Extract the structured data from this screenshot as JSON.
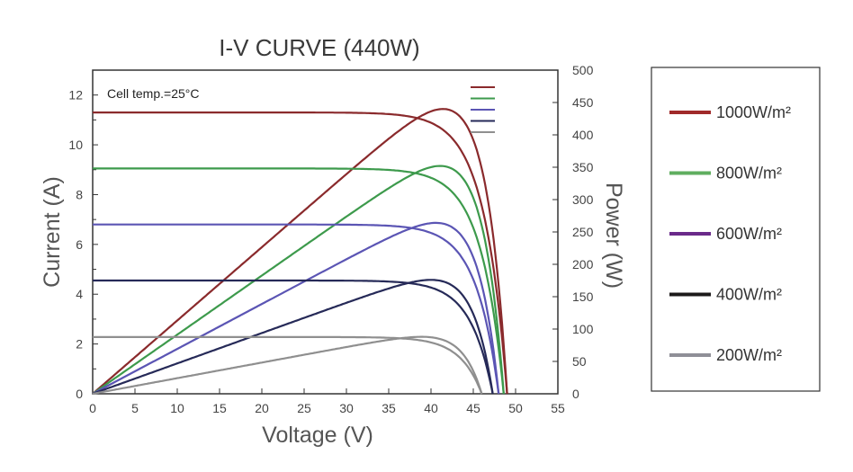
{
  "chart_data": {
    "type": "line",
    "title": "I-V CURVE (440W)",
    "xlabel": "Voltage (V)",
    "ylabel": "Current (A)",
    "y2label": "Power (W)",
    "annotation": "Cell temp.=25°C",
    "xlim": [
      0,
      55
    ],
    "ylim": [
      0,
      13
    ],
    "y2lim": [
      0,
      500
    ],
    "xticks": [
      0,
      5,
      10,
      15,
      20,
      25,
      30,
      35,
      40,
      45,
      50,
      55
    ],
    "yticks": [
      0,
      2,
      4,
      6,
      8,
      10,
      12
    ],
    "y2ticks": [
      0,
      50,
      100,
      150,
      200,
      250,
      300,
      350,
      400,
      450,
      500
    ],
    "series": [
      {
        "name": "1000W/m²",
        "color": "#8a2a2c",
        "isc": 11.3,
        "voc": 49.0,
        "pmax": 440,
        "vmp": 41.2
      },
      {
        "name": "800W/m²",
        "color": "#3d9a4c",
        "isc": 9.05,
        "voc": 48.6,
        "pmax": 352,
        "vmp": 41.0
      },
      {
        "name": "600W/m²",
        "color": "#5b55b4",
        "isc": 6.8,
        "voc": 48.0,
        "pmax": 264,
        "vmp": 40.9
      },
      {
        "name": "400W/m²",
        "color": "#262a58",
        "isc": 4.55,
        "voc": 47.3,
        "pmax": 176,
        "vmp": 40.8
      },
      {
        "name": "200W/m²",
        "color": "#8f8f8f",
        "isc": 2.28,
        "voc": 46.0,
        "pmax": 88,
        "vmp": 40.5
      }
    ],
    "legend": [
      {
        "label": "1000W/m²",
        "color": "#a02a2a"
      },
      {
        "label": "800W/m²",
        "color": "#5fae5f"
      },
      {
        "label": "600W/m²",
        "color": "#6a2a8a"
      },
      {
        "label": "400W/m²",
        "color": "#1c1a1a"
      },
      {
        "label": "200W/m²",
        "color": "#8f8f97"
      }
    ]
  }
}
